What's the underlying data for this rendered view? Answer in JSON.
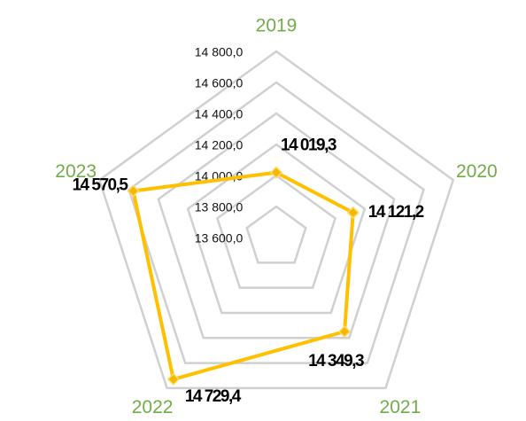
{
  "chart_data": {
    "type": "radar",
    "categories": [
      "2019",
      "2020",
      "2021",
      "2022",
      "2023"
    ],
    "series": [
      {
        "color": "#ffc000",
        "values": [
          14019.3,
          14121.2,
          14349.3,
          14729.4,
          14570.5
        ],
        "value_labels": [
          "14 019,3",
          "14 121,2",
          "14 349,3",
          "14 729,4",
          "14 570,5"
        ]
      }
    ],
    "ylim": [
      13600,
      14800
    ],
    "yticks": [
      {
        "value": 13600,
        "label": "13 600,0"
      },
      {
        "value": 13800,
        "label": "13 800,0"
      },
      {
        "value": 14000,
        "label": "14 000,0"
      },
      {
        "value": 14200,
        "label": "14 200,0"
      },
      {
        "value": 14400,
        "label": "14 400,0"
      },
      {
        "value": 14600,
        "label": "14 600,0"
      },
      {
        "value": 14800,
        "label": "14 800,0"
      }
    ],
    "grid": true,
    "grid_color": "#d0d0d0",
    "category_color": "#70ad47"
  }
}
